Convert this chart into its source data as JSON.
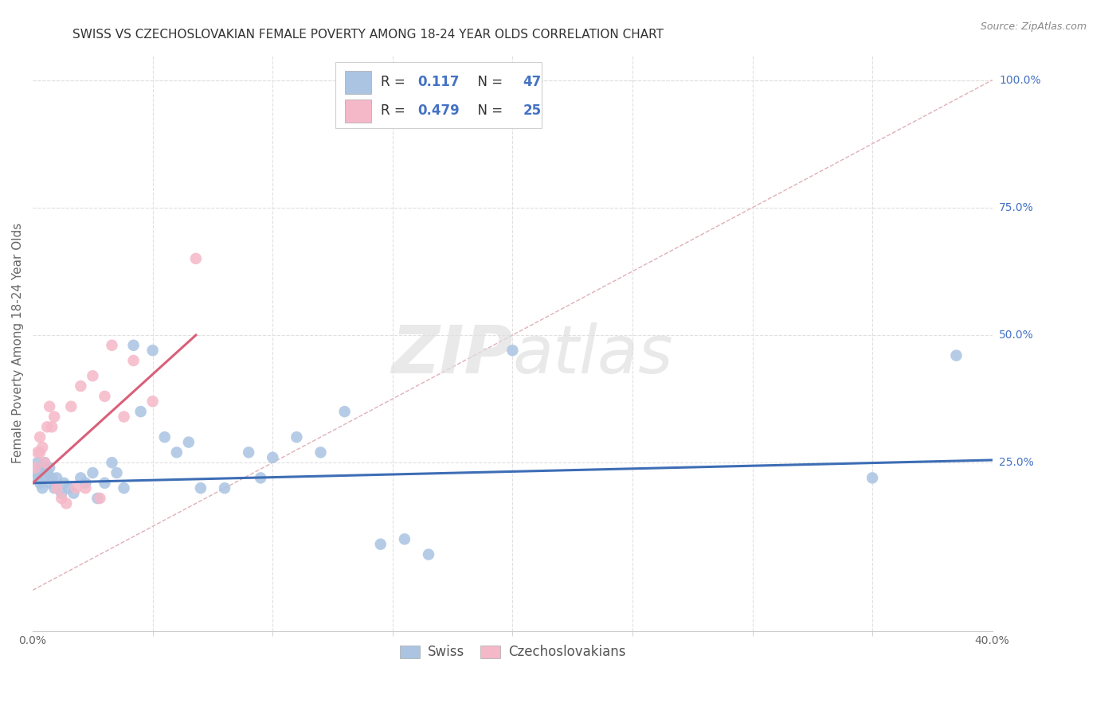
{
  "title": "SWISS VS CZECHOSLOVAKIAN FEMALE POVERTY AMONG 18-24 YEAR OLDS CORRELATION CHART",
  "source": "Source: ZipAtlas.com",
  "ylabel": "Female Poverty Among 18-24 Year Olds",
  "xlim": [
    0.0,
    0.4
  ],
  "ylim": [
    -0.08,
    1.05
  ],
  "ytick_labels_right": [
    "100.0%",
    "75.0%",
    "50.0%",
    "25.0%"
  ],
  "ytick_vals_right": [
    1.0,
    0.75,
    0.5,
    0.25
  ],
  "swiss_color": "#aac4e2",
  "czech_color": "#f5b8c8",
  "swiss_line_color": "#3d6db5",
  "czech_line_color": "#d9607a",
  "ref_line_color": "#cccccc",
  "watermark": "ZIPatlas",
  "watermark_color": "#dddddd",
  "legend_swiss_label": "Swiss",
  "legend_czech_label": "Czechoslovakians",
  "swiss_R": "0.117",
  "swiss_N": "47",
  "czech_R": "0.479",
  "czech_N": "25",
  "swiss_x": [
    0.001,
    0.002,
    0.002,
    0.003,
    0.003,
    0.004,
    0.004,
    0.005,
    0.005,
    0.006,
    0.007,
    0.007,
    0.008,
    0.009,
    0.01,
    0.012,
    0.013,
    0.015,
    0.017,
    0.02,
    0.022,
    0.025,
    0.027,
    0.03,
    0.033,
    0.035,
    0.038,
    0.042,
    0.045,
    0.05,
    0.055,
    0.06,
    0.065,
    0.07,
    0.08,
    0.09,
    0.095,
    0.1,
    0.11,
    0.12,
    0.13,
    0.145,
    0.155,
    0.165,
    0.2,
    0.35,
    0.385
  ],
  "swiss_y": [
    0.23,
    0.25,
    0.22,
    0.24,
    0.21,
    0.23,
    0.2,
    0.25,
    0.22,
    0.23,
    0.24,
    0.21,
    0.22,
    0.2,
    0.22,
    0.19,
    0.21,
    0.2,
    0.19,
    0.22,
    0.21,
    0.23,
    0.18,
    0.21,
    0.25,
    0.23,
    0.2,
    0.48,
    0.35,
    0.47,
    0.3,
    0.27,
    0.29,
    0.2,
    0.2,
    0.27,
    0.22,
    0.26,
    0.3,
    0.27,
    0.35,
    0.09,
    0.1,
    0.07,
    0.47,
    0.22,
    0.46
  ],
  "czech_x": [
    0.001,
    0.002,
    0.003,
    0.003,
    0.004,
    0.005,
    0.006,
    0.007,
    0.008,
    0.009,
    0.01,
    0.012,
    0.014,
    0.016,
    0.018,
    0.02,
    0.022,
    0.025,
    0.028,
    0.03,
    0.033,
    0.038,
    0.042,
    0.05,
    0.068
  ],
  "czech_y": [
    0.24,
    0.27,
    0.27,
    0.3,
    0.28,
    0.25,
    0.32,
    0.36,
    0.32,
    0.34,
    0.2,
    0.18,
    0.17,
    0.36,
    0.2,
    0.4,
    0.2,
    0.42,
    0.18,
    0.38,
    0.48,
    0.34,
    0.45,
    0.37,
    0.65
  ],
  "background_color": "#ffffff",
  "grid_color": "#e0e0e0",
  "title_fontsize": 11,
  "axis_label_fontsize": 11,
  "tick_fontsize": 10,
  "marker_size": 110
}
